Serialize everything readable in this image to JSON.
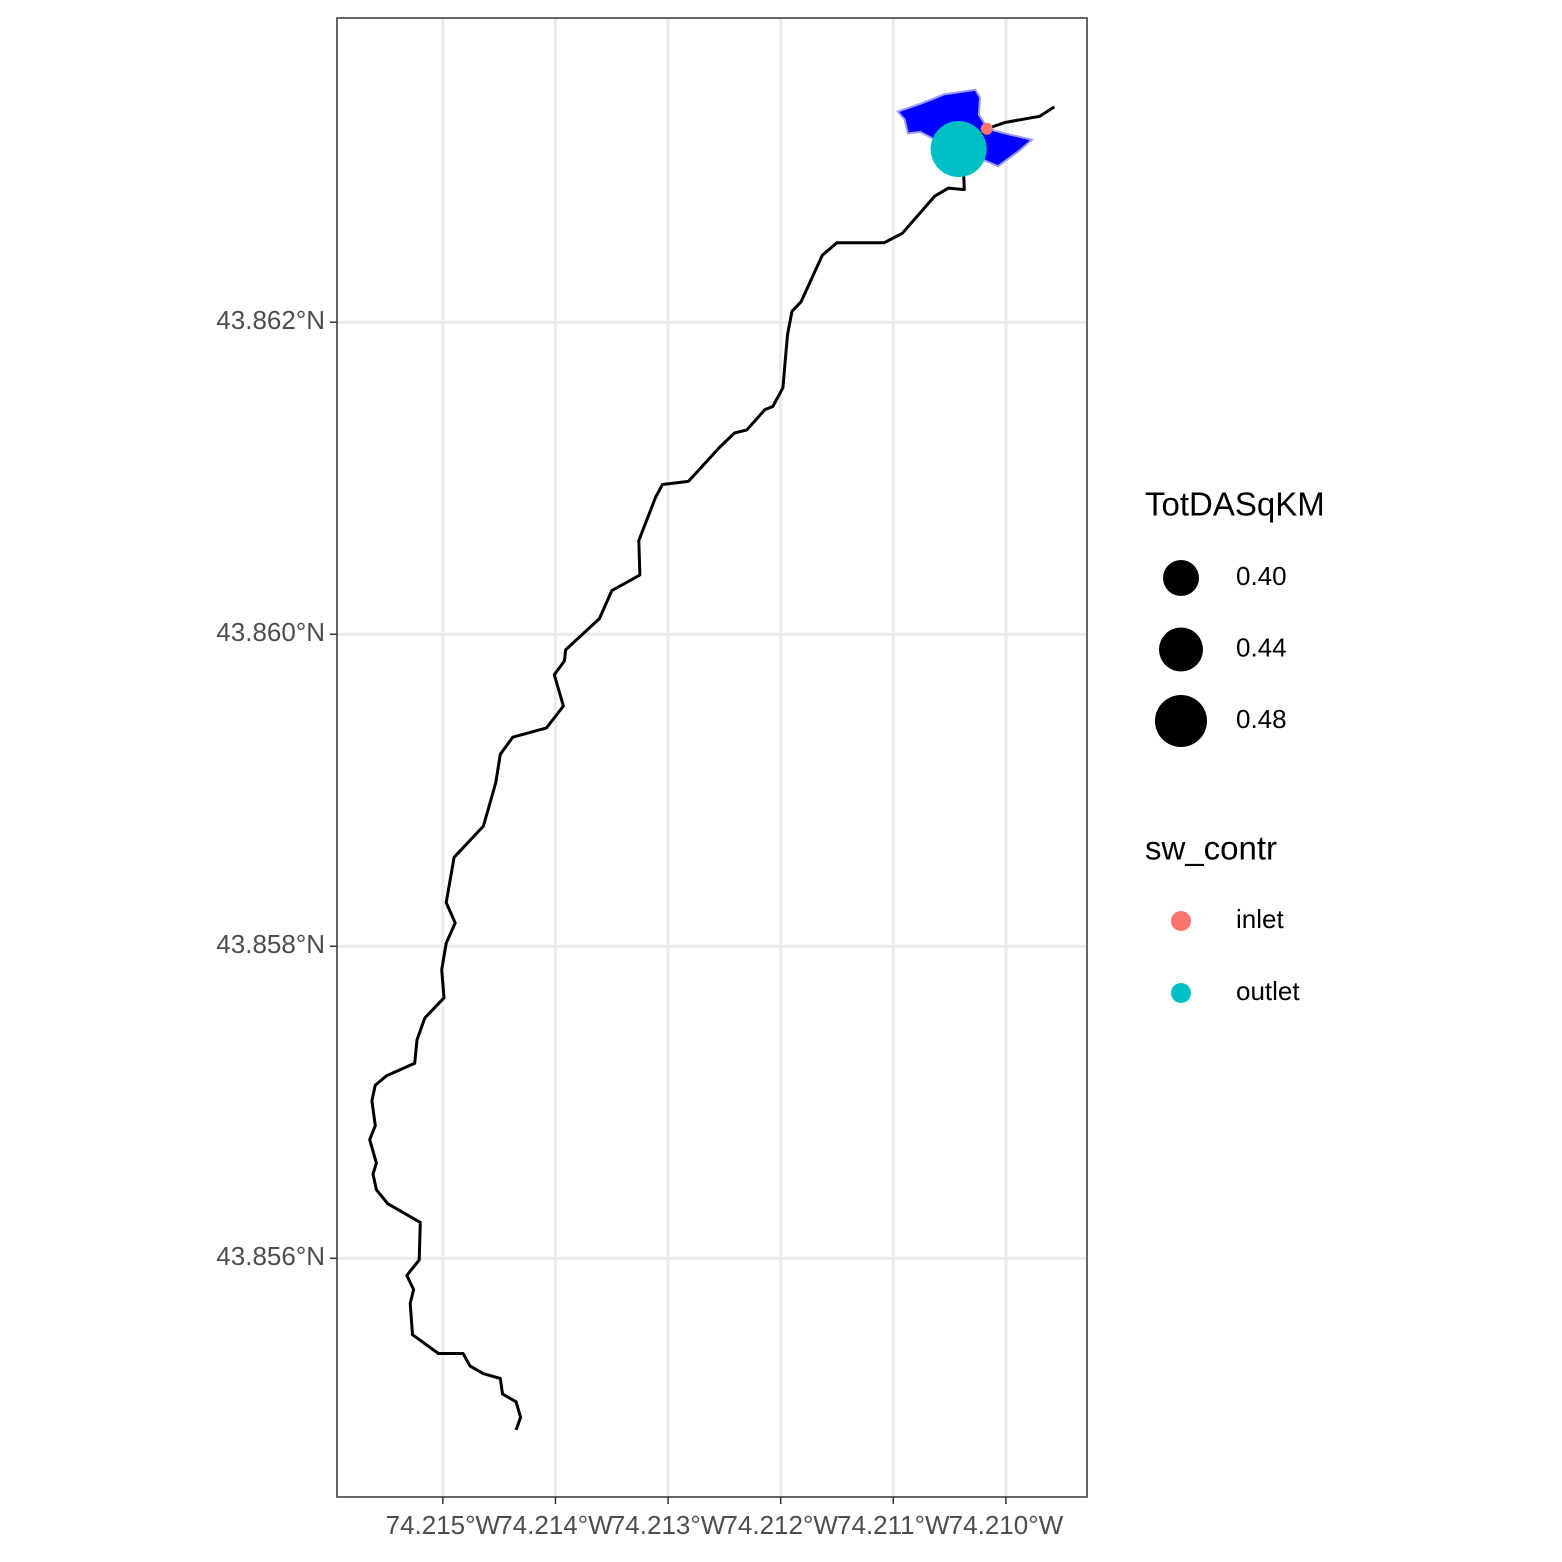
{
  "chart_data": {
    "type": "map",
    "xlim": [
      -74.21594,
      -74.20928
    ],
    "ylim": [
      43.85447,
      43.86395
    ],
    "xticks": [
      {
        "value": -74.215,
        "label": "74.215°W"
      },
      {
        "value": -74.214,
        "label": "74.214°W"
      },
      {
        "value": -74.213,
        "label": "74.213°W"
      },
      {
        "value": -74.212,
        "label": "74.212°W"
      },
      {
        "value": -74.211,
        "label": "74.211°W"
      },
      {
        "value": -74.21,
        "label": "74.210°W"
      }
    ],
    "yticks": [
      {
        "value": 43.856,
        "label": "43.856°N"
      },
      {
        "value": 43.858,
        "label": "43.858°N"
      },
      {
        "value": 43.86,
        "label": "43.860°N"
      },
      {
        "value": 43.862,
        "label": "43.862°N"
      }
    ],
    "grid": true,
    "polygon": {
      "fill": "#0000ff",
      "stroke": "#9c9cf0",
      "x": [
        -74.21096,
        -74.21076,
        -74.21055,
        -74.21027,
        -74.21023,
        -74.21024,
        -74.21016,
        -74.21001,
        -74.20977,
        -74.20988,
        -74.21007,
        -74.21023,
        -74.21041,
        -74.21063,
        -74.21076,
        -74.21087,
        -74.2109
      ],
      "y": [
        43.86335,
        43.8634,
        43.86346,
        43.86349,
        43.86344,
        43.86333,
        43.86324,
        43.86321,
        43.86317,
        43.8631,
        43.863,
        43.86305,
        43.8631,
        43.86317,
        43.86322,
        43.86321,
        43.8633
      ]
    },
    "line": {
      "color": "#000000",
      "x": [
        -74.21435,
        -74.21431,
        -74.21435,
        -74.21447,
        -74.21449,
        -74.21464,
        -74.21476,
        -74.21482,
        -74.21504,
        -74.21527,
        -74.21529,
        -74.21526,
        -74.21532,
        -74.21521,
        -74.2152,
        -74.21549,
        -74.21559,
        -74.21562,
        -74.21559,
        -74.21565,
        -74.2156,
        -74.21563,
        -74.2156,
        -74.2155,
        -74.21525,
        -74.21523,
        -74.21516,
        -74.21499,
        -74.21501,
        -74.21497,
        -74.21489,
        -74.21497,
        -74.2149,
        -74.21464,
        -74.21453,
        -74.21449,
        -74.21438,
        -74.21408,
        -74.21393,
        -74.21401,
        -74.21392,
        -74.21391,
        -74.21361,
        -74.2135,
        -74.21325,
        -74.21326,
        -74.21311,
        -74.21305,
        -74.21282,
        -74.21254,
        -74.21241,
        -74.2123,
        -74.21214,
        -74.21207,
        -74.21198,
        -74.21194,
        -74.2119,
        -74.21182,
        -74.21163,
        -74.2115,
        -74.21108,
        -74.21092,
        -74.21063,
        -74.21051,
        -74.21037,
        -74.21038,
        -74.21017,
        -74.21001,
        -74.2097,
        -74.20957
      ],
      "y": [
        43.8549,
        43.85498,
        43.85508,
        43.85513,
        43.85523,
        43.85526,
        43.85531,
        43.85539,
        43.85539,
        43.85551,
        43.85571,
        43.8558,
        43.85589,
        43.85599,
        43.85623,
        43.85635,
        43.85644,
        43.85654,
        43.85661,
        43.85676,
        43.85685,
        43.85701,
        43.85711,
        43.85717,
        43.85725,
        43.8574,
        43.85754,
        43.85767,
        43.85785,
        43.85802,
        43.85815,
        43.85828,
        43.85857,
        43.85877,
        43.85905,
        43.85923,
        43.85934,
        43.8594,
        43.85954,
        43.85974,
        43.85983,
        43.8599,
        43.8601,
        43.86028,
        43.86038,
        43.8606,
        43.86088,
        43.86096,
        43.86098,
        43.8612,
        43.86129,
        43.86131,
        43.86144,
        43.86146,
        43.86158,
        43.86192,
        43.86207,
        43.86213,
        43.86243,
        43.86251,
        43.86251,
        43.86257,
        43.86281,
        43.86286,
        43.86285,
        43.86304,
        43.86324,
        43.86328,
        43.86332,
        43.86338
      ]
    },
    "series": [
      {
        "name": "inlet",
        "color": "#f8766d",
        "x": [
          -74.21017
        ],
        "y": [
          43.86324
        ],
        "size": [
          0.28
        ]
      },
      {
        "name": "outlet",
        "color": "#00bfc4",
        "x": [
          -74.21042
        ],
        "y": [
          43.86311
        ],
        "size": [
          0.5
        ]
      }
    ],
    "size_legend": {
      "title": "TotDASqKM",
      "values": [
        {
          "value": 0.4,
          "label": "0.40"
        },
        {
          "value": 0.44,
          "label": "0.44"
        },
        {
          "value": 0.48,
          "label": "0.48"
        }
      ]
    },
    "color_legend_title": "sw_contr"
  }
}
